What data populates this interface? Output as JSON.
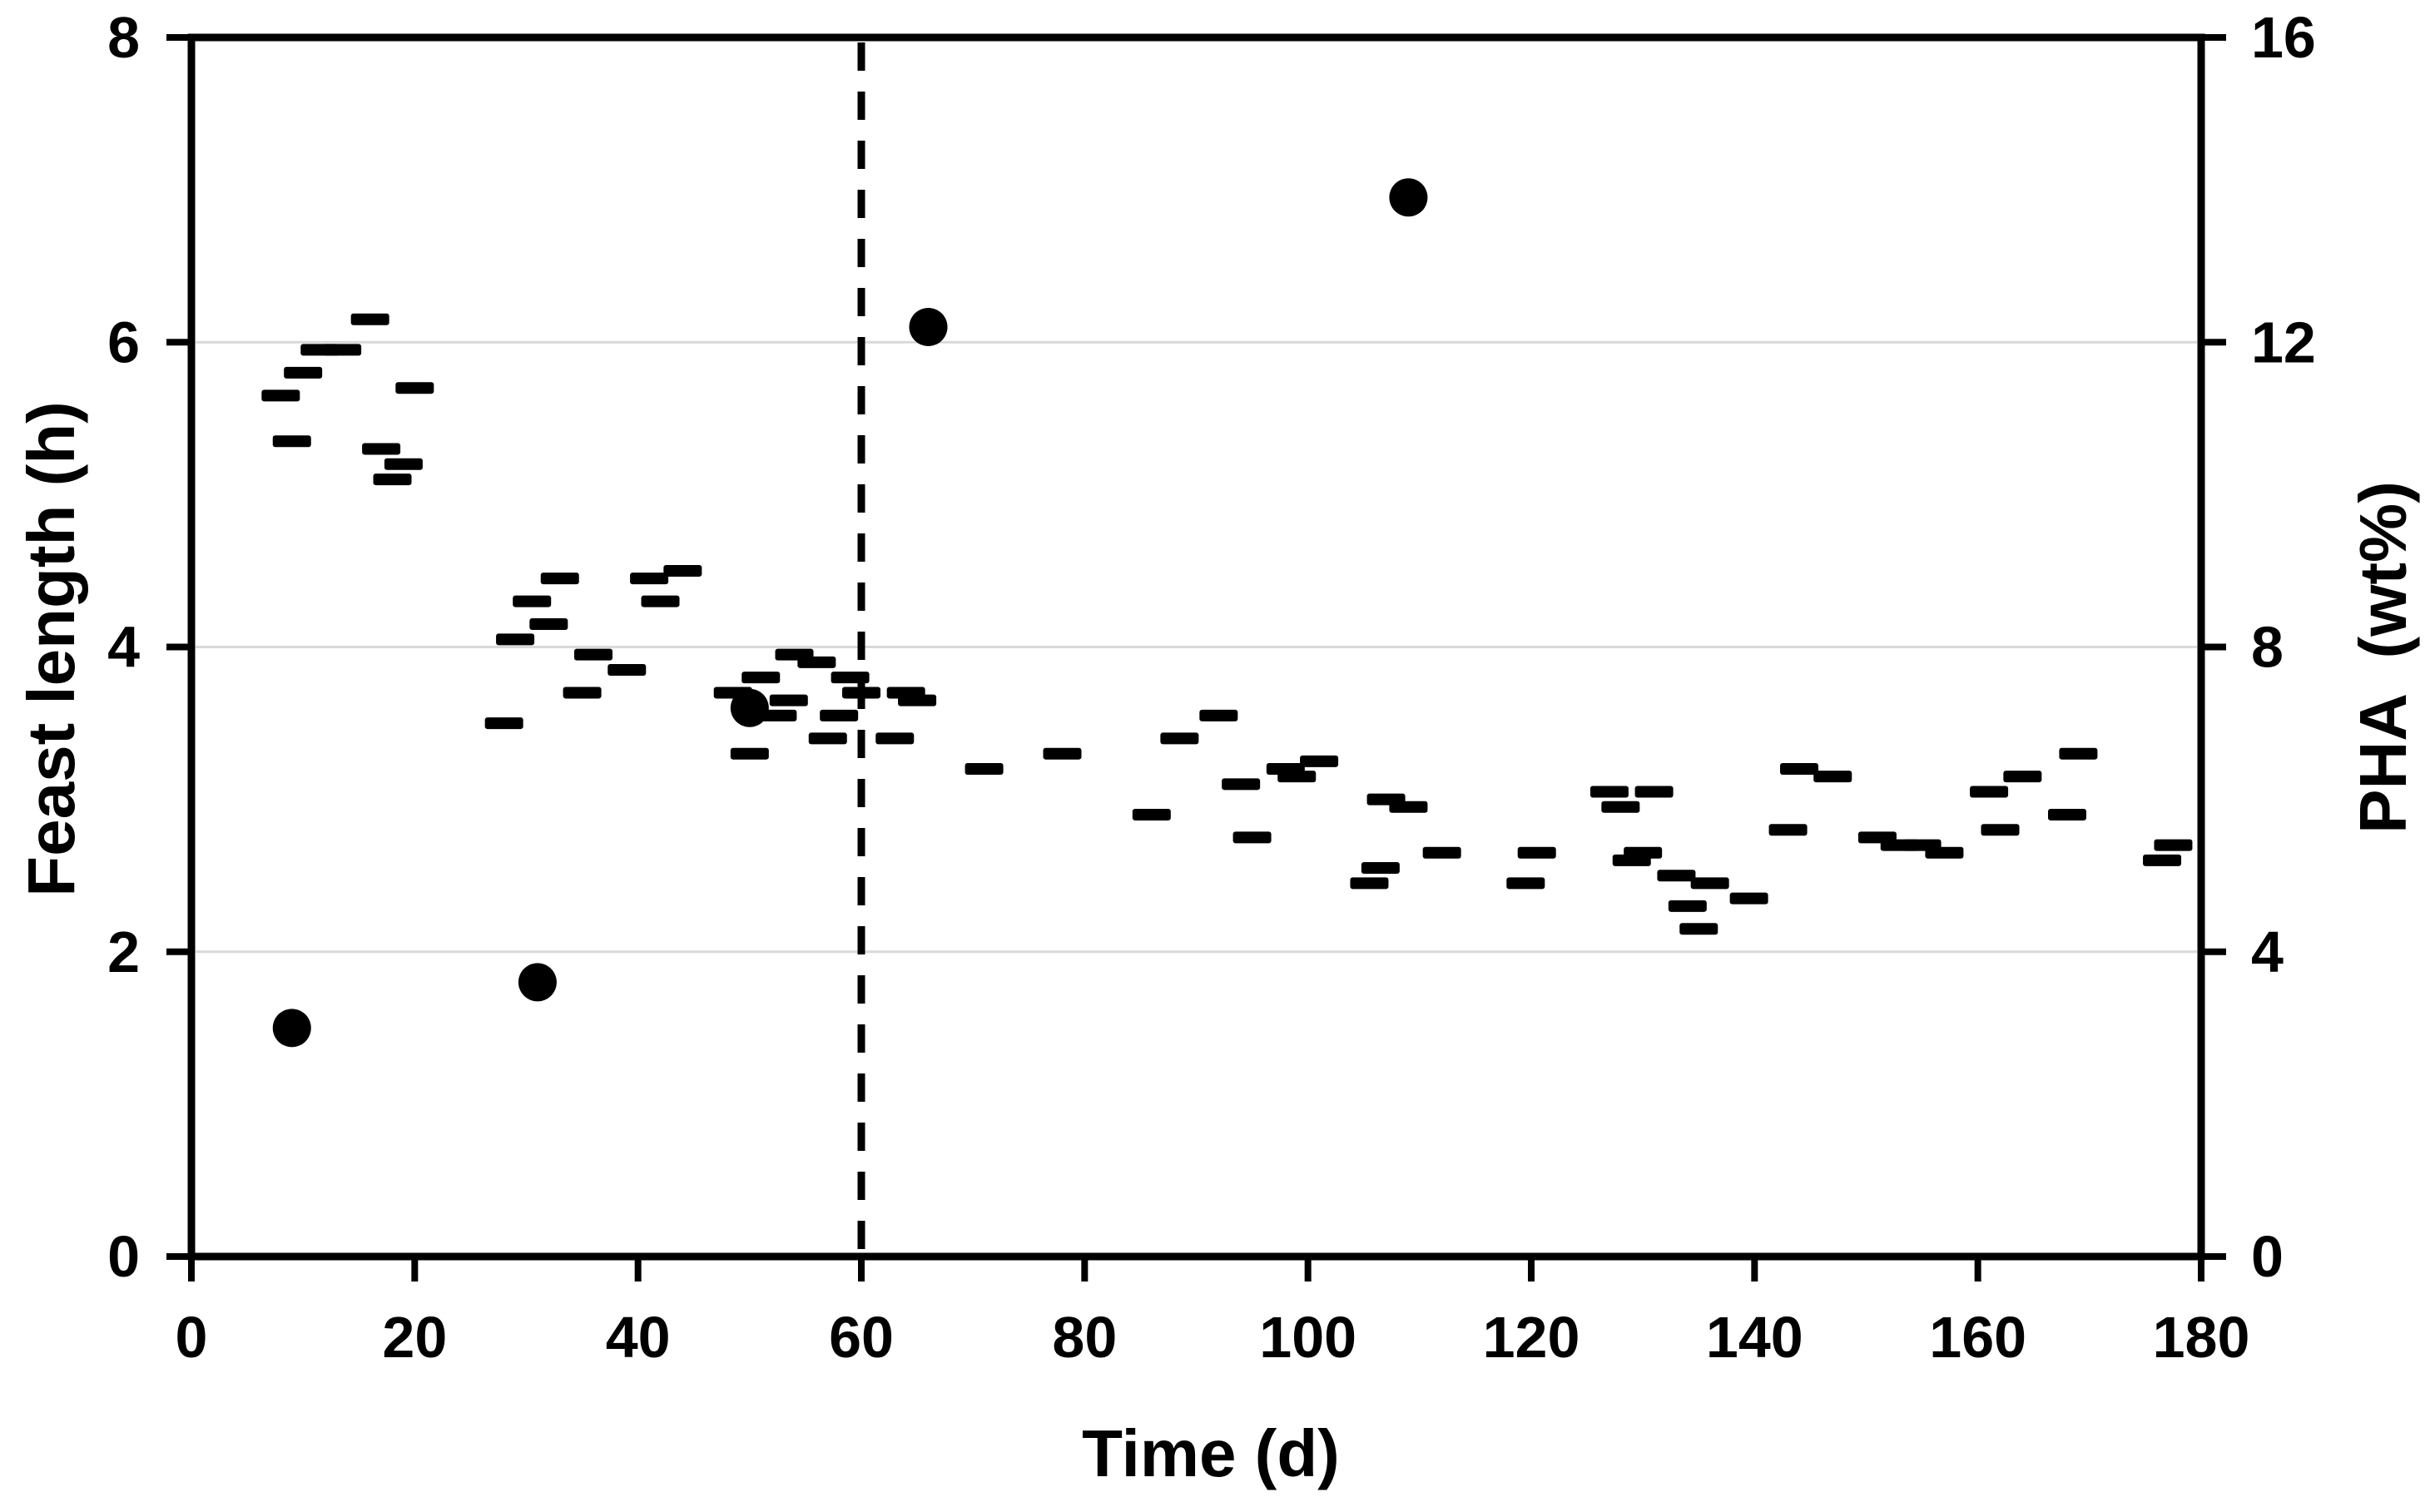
{
  "chart_data": {
    "type": "scatter",
    "title": "",
    "xlabel": "Time (d)",
    "ylabel_left": "Feast length (h)",
    "ylabel_right": "PHA  (wt%)",
    "xlim": [
      0,
      180
    ],
    "xticks": [
      0,
      20,
      40,
      60,
      80,
      100,
      120,
      140,
      160,
      180
    ],
    "ylim_left": [
      0,
      8
    ],
    "yticks_left": [
      0,
      2,
      4,
      6,
      8
    ],
    "ylim_right": [
      0,
      16
    ],
    "yticks_right": [
      0,
      4,
      8,
      12,
      16
    ],
    "gridlines_left": [
      2,
      4,
      6
    ],
    "grid": true,
    "legend_position": "none",
    "vline": {
      "x": 60,
      "style": "dashed"
    },
    "colors": {
      "fg": "#000000",
      "grid": "#d9d9d9",
      "background": "#ffffff"
    },
    "series": [
      {
        "name": "Feast length",
        "axis": "left",
        "marker": "dash",
        "points": [
          [
            8,
            5.65
          ],
          [
            9,
            5.35
          ],
          [
            10,
            5.8
          ],
          [
            11.5,
            5.95
          ],
          [
            13.5,
            5.95
          ],
          [
            16,
            6.15
          ],
          [
            17,
            5.3
          ],
          [
            18,
            5.1
          ],
          [
            19,
            5.2
          ],
          [
            20,
            5.7
          ],
          [
            28,
            3.5
          ],
          [
            29,
            4.05
          ],
          [
            30.5,
            4.3
          ],
          [
            32,
            4.15
          ],
          [
            33,
            4.45
          ],
          [
            35,
            3.7
          ],
          [
            36,
            3.95
          ],
          [
            39,
            3.85
          ],
          [
            41,
            4.45
          ],
          [
            42,
            4.3
          ],
          [
            44,
            4.5
          ],
          [
            48.5,
            3.7
          ],
          [
            50,
            3.3
          ],
          [
            51,
            3.8
          ],
          [
            52.5,
            3.55
          ],
          [
            53.5,
            3.65
          ],
          [
            54,
            3.95
          ],
          [
            56,
            3.9
          ],
          [
            57,
            3.4
          ],
          [
            58,
            3.55
          ],
          [
            59,
            3.8
          ],
          [
            60,
            3.7
          ],
          [
            63,
            3.4
          ],
          [
            64,
            3.7
          ],
          [
            65,
            3.65
          ],
          [
            71,
            3.2
          ],
          [
            78,
            3.3
          ],
          [
            86,
            2.9
          ],
          [
            88.5,
            3.4
          ],
          [
            92,
            3.55
          ],
          [
            94,
            3.1
          ],
          [
            95,
            2.75
          ],
          [
            98,
            3.2
          ],
          [
            99,
            3.15
          ],
          [
            101,
            3.25
          ],
          [
            105.5,
            2.45
          ],
          [
            106.5,
            2.55
          ],
          [
            107,
            3.0
          ],
          [
            109,
            2.95
          ],
          [
            112,
            2.65
          ],
          [
            119.5,
            2.45
          ],
          [
            120.5,
            2.65
          ],
          [
            127,
            3.05
          ],
          [
            128,
            2.95
          ],
          [
            129,
            2.6
          ],
          [
            130,
            2.65
          ],
          [
            131,
            3.05
          ],
          [
            133,
            2.5
          ],
          [
            134,
            2.3
          ],
          [
            135,
            2.15
          ],
          [
            136,
            2.45
          ],
          [
            139.5,
            2.35
          ],
          [
            143,
            2.8
          ],
          [
            144,
            3.2
          ],
          [
            147,
            3.15
          ],
          [
            151,
            2.75
          ],
          [
            153,
            2.7
          ],
          [
            155,
            2.7
          ],
          [
            157,
            2.65
          ],
          [
            161,
            3.05
          ],
          [
            162,
            2.8
          ],
          [
            164,
            3.15
          ],
          [
            168,
            2.9
          ],
          [
            169,
            3.3
          ],
          [
            176.5,
            2.6
          ],
          [
            177.5,
            2.7
          ]
        ]
      },
      {
        "name": "PHA",
        "axis": "right",
        "marker": "circle",
        "points": [
          [
            9,
            3.0
          ],
          [
            31,
            3.6
          ],
          [
            50,
            7.2
          ],
          [
            66,
            12.2
          ],
          [
            109,
            13.9
          ]
        ]
      }
    ]
  }
}
